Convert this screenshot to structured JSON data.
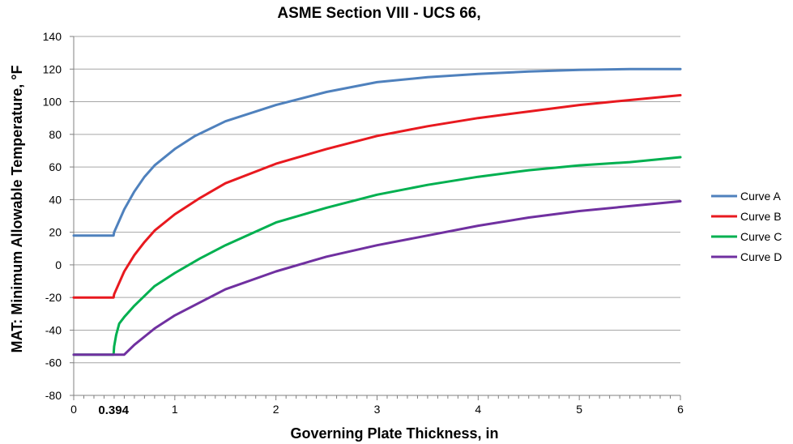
{
  "chart_data": {
    "type": "line",
    "title": "ASME Section VIII - UCS 66,",
    "xlabel": "Governing Plate Thickness, in",
    "ylabel": "MAT: Minimum Allowable Temperature, °F",
    "xlim": [
      0,
      6
    ],
    "ylim": [
      -80,
      140
    ],
    "x_ticks": [
      0,
      1,
      2,
      3,
      4,
      5,
      6
    ],
    "y_ticks": [
      -80,
      -60,
      -40,
      -20,
      0,
      20,
      40,
      60,
      80,
      100,
      120,
      140
    ],
    "x_special_tick": "0.394",
    "x_special_tick_value": 0.394,
    "grid": "horizontal",
    "legend_position": "right",
    "series": [
      {
        "name": "Curve A",
        "color": "#4F81BD",
        "points": [
          [
            0,
            18
          ],
          [
            0.394,
            18
          ],
          [
            0.4,
            20
          ],
          [
            0.5,
            34
          ],
          [
            0.6,
            45
          ],
          [
            0.7,
            54
          ],
          [
            0.8,
            61
          ],
          [
            1.0,
            71
          ],
          [
            1.2,
            79
          ],
          [
            1.5,
            88
          ],
          [
            2.0,
            98
          ],
          [
            2.5,
            106
          ],
          [
            3.0,
            112
          ],
          [
            3.5,
            115
          ],
          [
            4.0,
            117
          ],
          [
            4.5,
            118.5
          ],
          [
            5.0,
            119.5
          ],
          [
            5.5,
            120
          ],
          [
            6.0,
            120
          ]
        ]
      },
      {
        "name": "Curve B",
        "color": "#E8191F",
        "points": [
          [
            0,
            -20
          ],
          [
            0.394,
            -20
          ],
          [
            0.4,
            -18
          ],
          [
            0.5,
            -4
          ],
          [
            0.6,
            6
          ],
          [
            0.7,
            14
          ],
          [
            0.8,
            21
          ],
          [
            1.0,
            31
          ],
          [
            1.25,
            41
          ],
          [
            1.5,
            50
          ],
          [
            2.0,
            62
          ],
          [
            2.5,
            71
          ],
          [
            3.0,
            79
          ],
          [
            3.5,
            85
          ],
          [
            4.0,
            90
          ],
          [
            4.5,
            94
          ],
          [
            5.0,
            98
          ],
          [
            5.5,
            101
          ],
          [
            6.0,
            104
          ]
        ]
      },
      {
        "name": "Curve C",
        "color": "#00B050",
        "points": [
          [
            0,
            -55
          ],
          [
            0.394,
            -55
          ],
          [
            0.4,
            -50
          ],
          [
            0.42,
            -43
          ],
          [
            0.45,
            -36
          ],
          [
            0.5,
            -32
          ],
          [
            0.6,
            -25
          ],
          [
            0.7,
            -19
          ],
          [
            0.8,
            -13
          ],
          [
            1.0,
            -5
          ],
          [
            1.25,
            4
          ],
          [
            1.5,
            12
          ],
          [
            2.0,
            26
          ],
          [
            2.5,
            35
          ],
          [
            3.0,
            43
          ],
          [
            3.5,
            49
          ],
          [
            4.0,
            54
          ],
          [
            4.5,
            58
          ],
          [
            5.0,
            61
          ],
          [
            5.5,
            63
          ],
          [
            6.0,
            66
          ]
        ]
      },
      {
        "name": "Curve D",
        "color": "#7030A0",
        "points": [
          [
            0,
            -55
          ],
          [
            0.5,
            -55
          ],
          [
            0.6,
            -49
          ],
          [
            0.7,
            -44
          ],
          [
            0.8,
            -39
          ],
          [
            1.0,
            -31
          ],
          [
            1.25,
            -23
          ],
          [
            1.5,
            -15
          ],
          [
            2.0,
            -4
          ],
          [
            2.5,
            5
          ],
          [
            3.0,
            12
          ],
          [
            3.5,
            18
          ],
          [
            4.0,
            24
          ],
          [
            4.5,
            29
          ],
          [
            5.0,
            33
          ],
          [
            5.5,
            36
          ],
          [
            6.0,
            39
          ]
        ]
      }
    ]
  }
}
